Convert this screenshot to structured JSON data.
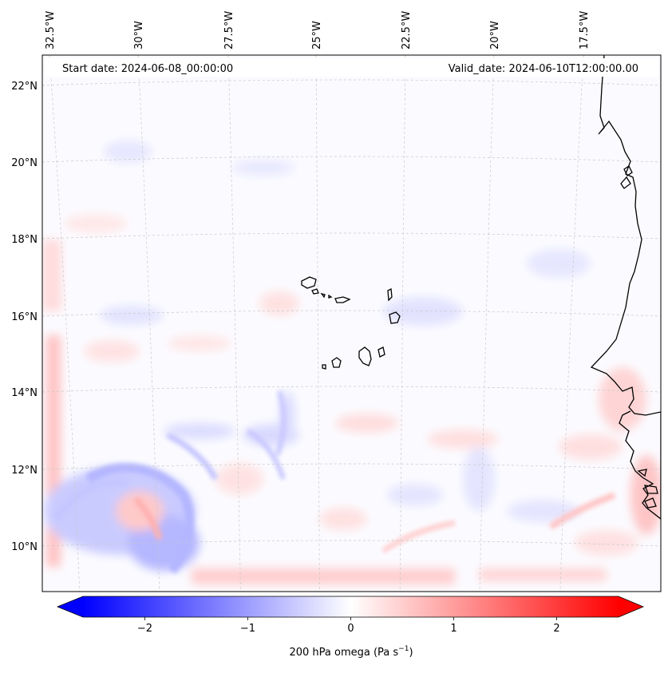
{
  "header": {
    "start_label": "Start date: 2024-06-08_00:00:00",
    "valid_label": "Valid_date: 2024-06-10T12:00:00.00"
  },
  "map": {
    "lon_labels": [
      "32.5°W",
      "30°W",
      "27.5°W",
      "25°W",
      "22.5°W",
      "20°W",
      "17.5°W"
    ],
    "lat_labels": [
      "22°N",
      "20°N",
      "18°N",
      "16°N",
      "14°N",
      "12°N",
      "10°N"
    ],
    "gridlines": "dashed",
    "coastline_color": "#000000"
  },
  "colorbar": {
    "ticks": [
      "−2",
      "−1",
      "0",
      "1",
      "2"
    ],
    "tick_values": [
      -2,
      -1,
      0,
      1,
      2
    ],
    "range": [
      -2.6,
      2.6
    ],
    "extend": "both",
    "min_color": "#0000ff",
    "mid_color": "#ffffff",
    "max_color": "#ff0000",
    "label_main": "200 hPa omega (Pa s",
    "label_sup": "−1",
    "label_end": ")"
  },
  "colors": {
    "positive": "#ff0000",
    "negative": "#0000ff"
  }
}
